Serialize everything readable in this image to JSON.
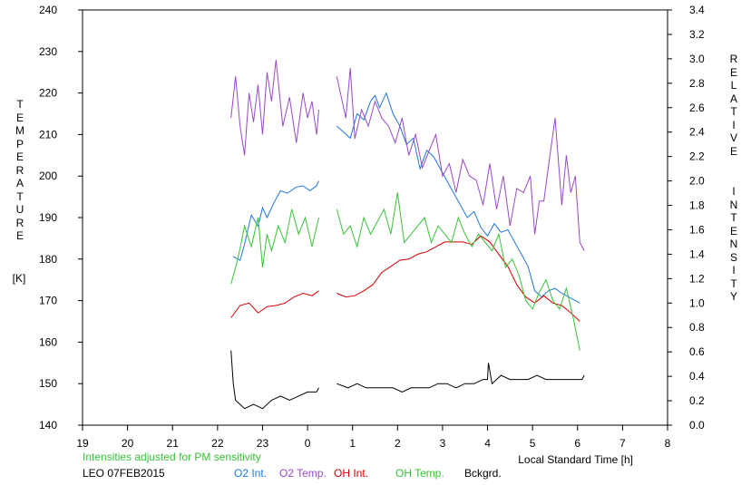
{
  "chart_data": {
    "type": "line",
    "left_axis_title": "TEMPERATURE",
    "left_axis_unit": "[K]",
    "right_axis_title": "RELATIVE INTENSITY",
    "xlabel": "Local Standard Time [h]",
    "note": "Intensities adjusted for PM sensitivity",
    "station_date": "LEO 07FEB2015",
    "x_ticks": [
      "19",
      "20",
      "21",
      "22",
      "23",
      "0",
      "1",
      "2",
      "3",
      "4",
      "5",
      "6",
      "7",
      "8"
    ],
    "y_left_ticks": [
      "140",
      "150",
      "160",
      "170",
      "180",
      "190",
      "200",
      "210",
      "220",
      "230",
      "240"
    ],
    "y_right_ticks": [
      "0.0",
      "0.2",
      "0.4",
      "0.6",
      "0.8",
      "1.0",
      "1.2",
      "1.4",
      "1.6",
      "1.8",
      "2.0",
      "2.2",
      "2.4",
      "2.6",
      "2.8",
      "3.0",
      "3.2",
      "3.4"
    ],
    "xlim": [
      19,
      32
    ],
    "ylim_left": [
      140,
      240
    ],
    "ylim_right": [
      0,
      3.4
    ],
    "gap": [
      24.3,
      24.65
    ],
    "series": [
      {
        "name": "O2 Int.",
        "color": "#1e78d8",
        "axis": "right",
        "x": [
          22.35,
          22.5,
          22.6,
          22.75,
          22.9,
          23.0,
          23.1,
          23.25,
          23.4,
          23.55,
          23.75,
          23.9,
          24.05,
          24.2,
          24.25,
          24.65,
          24.8,
          24.95,
          25.1,
          25.25,
          25.4,
          25.5,
          25.6,
          25.75,
          25.9,
          26.05,
          26.2,
          26.35,
          26.5,
          26.65,
          26.8,
          26.95,
          27.1,
          27.25,
          27.4,
          27.55,
          27.7,
          27.85,
          28.0,
          28.15,
          28.3,
          28.45,
          28.6,
          28.75,
          28.9,
          29.05,
          29.2,
          29.35,
          29.5,
          29.65,
          29.8,
          29.95,
          30.05
        ],
        "y": [
          1.38,
          1.35,
          1.48,
          1.72,
          1.63,
          1.78,
          1.7,
          1.82,
          1.92,
          1.9,
          1.95,
          1.96,
          1.92,
          1.96,
          2.0,
          2.45,
          2.4,
          2.35,
          2.55,
          2.5,
          2.65,
          2.7,
          2.6,
          2.72,
          2.55,
          2.45,
          2.3,
          2.35,
          2.1,
          2.25,
          2.2,
          2.1,
          2.0,
          1.9,
          1.8,
          1.7,
          1.75,
          1.62,
          1.55,
          1.65,
          1.58,
          1.6,
          1.5,
          1.4,
          1.3,
          1.1,
          1.05,
          1.1,
          1.12,
          1.08,
          1.05,
          1.02,
          1.0
        ]
      },
      {
        "name": "O2 Temp.",
        "color": "#9a48c8",
        "axis": "left",
        "x": [
          22.3,
          22.4,
          22.5,
          22.6,
          22.7,
          22.8,
          22.9,
          23.0,
          23.1,
          23.2,
          23.3,
          23.45,
          23.6,
          23.75,
          23.9,
          24.0,
          24.1,
          24.2,
          24.25,
          24.65,
          24.75,
          24.85,
          24.95,
          25.05,
          25.2,
          25.35,
          25.5,
          25.65,
          25.8,
          25.95,
          26.1,
          26.25,
          26.4,
          26.55,
          26.7,
          26.85,
          27.0,
          27.15,
          27.3,
          27.45,
          27.6,
          27.75,
          27.9,
          28.05,
          28.2,
          28.35,
          28.5,
          28.65,
          28.8,
          28.95,
          29.05,
          29.15,
          29.25,
          29.35,
          29.5,
          29.65,
          29.75,
          29.85,
          29.95,
          30.05,
          30.15
        ],
        "y": [
          214,
          224,
          212,
          205,
          220,
          213,
          222,
          210,
          225,
          218,
          228,
          212,
          219,
          208,
          220,
          214,
          218,
          210,
          216,
          224,
          219,
          214,
          226,
          209,
          216,
          212,
          218,
          214,
          212,
          208,
          214,
          205,
          210,
          202,
          206,
          210,
          200,
          203,
          196,
          204,
          200,
          199,
          193,
          203,
          192,
          200,
          188,
          197,
          196,
          200,
          186,
          194,
          194,
          202,
          214,
          193,
          205,
          196,
          200,
          184,
          182
        ]
      },
      {
        "name": "OH Int.",
        "color": "#d40000",
        "axis": "right",
        "x": [
          22.3,
          22.5,
          22.7,
          22.9,
          23.1,
          23.3,
          23.5,
          23.7,
          23.9,
          24.1,
          24.25,
          24.65,
          24.85,
          25.05,
          25.25,
          25.45,
          25.65,
          25.85,
          26.05,
          26.25,
          26.45,
          26.65,
          26.85,
          27.05,
          27.25,
          27.45,
          27.65,
          27.85,
          28.05,
          28.25,
          28.45,
          28.65,
          28.85,
          29.05,
          29.25,
          29.45,
          29.65,
          29.85,
          30.05
        ],
        "y": [
          0.88,
          0.98,
          1.0,
          0.92,
          0.97,
          0.98,
          1.0,
          1.05,
          1.08,
          1.06,
          1.1,
          1.08,
          1.05,
          1.06,
          1.1,
          1.15,
          1.25,
          1.3,
          1.35,
          1.36,
          1.4,
          1.42,
          1.46,
          1.5,
          1.5,
          1.5,
          1.48,
          1.55,
          1.5,
          1.4,
          1.3,
          1.15,
          1.05,
          1.0,
          1.06,
          1.0,
          0.98,
          0.92,
          0.85
        ]
      },
      {
        "name": "OH Temp.",
        "color": "#36c436",
        "axis": "left",
        "x": [
          22.3,
          22.45,
          22.6,
          22.75,
          22.9,
          23.0,
          23.1,
          23.2,
          23.35,
          23.5,
          23.65,
          23.8,
          23.95,
          24.1,
          24.25,
          24.65,
          24.8,
          24.95,
          25.1,
          25.25,
          25.4,
          25.55,
          25.7,
          25.85,
          26.0,
          26.15,
          26.3,
          26.45,
          26.6,
          26.75,
          26.9,
          27.05,
          27.2,
          27.35,
          27.5,
          27.65,
          27.8,
          27.95,
          28.1,
          28.25,
          28.4,
          28.55,
          28.7,
          28.85,
          29.0,
          29.15,
          29.3,
          29.45,
          29.6,
          29.75,
          29.9,
          30.05
        ],
        "y": [
          174,
          180,
          188,
          183,
          190,
          178,
          186,
          182,
          188,
          184,
          192,
          186,
          190,
          183,
          190,
          192,
          186,
          188,
          183,
          190,
          186,
          189,
          192,
          186,
          196,
          184,
          186,
          188,
          190,
          184,
          188,
          186,
          184,
          190,
          186,
          183,
          186,
          184,
          182,
          186,
          178,
          180,
          176,
          170,
          168,
          172,
          175,
          170,
          168,
          173,
          166,
          158
        ]
      },
      {
        "name": "Bckgrd.",
        "color": "#000000",
        "axis": "left",
        "x": [
          22.3,
          22.35,
          22.4,
          22.5,
          22.6,
          22.8,
          23.0,
          23.2,
          23.4,
          23.6,
          23.8,
          24.0,
          24.2,
          24.25,
          24.65,
          24.9,
          25.1,
          25.3,
          25.5,
          25.7,
          25.9,
          26.1,
          26.3,
          26.5,
          26.7,
          26.9,
          27.1,
          27.3,
          27.5,
          27.7,
          27.9,
          28.0,
          28.02,
          28.1,
          28.3,
          28.5,
          28.7,
          28.9,
          29.1,
          29.3,
          29.5,
          29.7,
          29.9,
          30.1,
          30.15
        ],
        "y": [
          158,
          150,
          146,
          145,
          144,
          145,
          144,
          146,
          147,
          146,
          147,
          148,
          148,
          149,
          150,
          149,
          150,
          149,
          149,
          149,
          149,
          148,
          149,
          149,
          149,
          150,
          150,
          149,
          150,
          150,
          151,
          151,
          155,
          150,
          152,
          151,
          151,
          151,
          152,
          151,
          151,
          151,
          151,
          151,
          152
        ]
      }
    ]
  }
}
